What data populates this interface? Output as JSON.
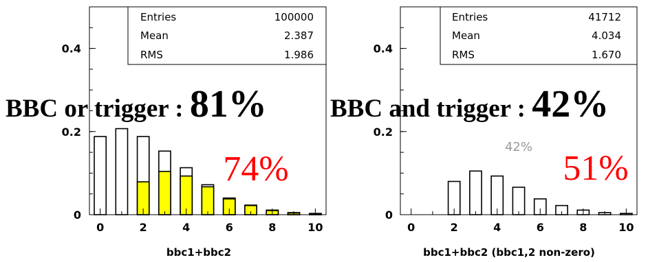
{
  "chart_data": [
    {
      "type": "bar",
      "x": [
        0,
        1,
        2,
        3,
        4,
        5,
        6,
        7,
        8,
        9,
        10
      ],
      "xlabel": "bbc1+bbc2",
      "xlim": [
        -0.5,
        10.5
      ],
      "ylim": [
        0,
        0.5
      ],
      "yticks": [
        0,
        0.2,
        0.4
      ],
      "ytick_labels": [
        "0",
        "0.2",
        "0.4"
      ],
      "xticks": [
        0,
        2,
        4,
        6,
        8,
        10
      ],
      "xtick_labels": [
        "0",
        "2",
        "4",
        "6",
        "8",
        "10"
      ],
      "series": [
        {
          "fill": "#ffffff",
          "values": [
            0.188,
            0.207,
            0.188,
            0.153,
            0.113,
            0.072,
            0.04,
            0.023,
            0.011,
            0.005,
            0.003
          ]
        },
        {
          "fill": "#ffff00",
          "values": [
            0.0,
            0.0,
            0.079,
            0.104,
            0.093,
            0.067,
            0.038,
            0.022,
            0.01,
            0.004,
            0.002
          ]
        }
      ],
      "stats": [
        {
          "label": "Entries",
          "value": "100000"
        },
        {
          "label": "Mean",
          "value": "2.387"
        },
        {
          "label": "RMS",
          "value": "1.986"
        }
      ],
      "annotations": [
        {
          "text": "74%",
          "color": "#ff0000"
        }
      ]
    },
    {
      "type": "bar",
      "x": [
        0,
        1,
        2,
        3,
        4,
        5,
        6,
        7,
        8,
        9,
        10
      ],
      "xlabel": "bbc1+bbc2 (bbc1,2 non-zero)",
      "xlim": [
        -0.5,
        10.5
      ],
      "ylim": [
        0,
        0.5
      ],
      "yticks": [
        0,
        0.2,
        0.4
      ],
      "ytick_labels": [
        "0",
        "0.2",
        "0.4"
      ],
      "xticks": [
        0,
        2,
        4,
        6,
        8,
        10
      ],
      "xtick_labels": [
        "0",
        "2",
        "4",
        "6",
        "8",
        "10"
      ],
      "series": [
        {
          "fill": "#ffffff",
          "values": [
            0.0,
            0.0,
            0.08,
            0.105,
            0.093,
            0.066,
            0.038,
            0.022,
            0.011,
            0.005,
            0.003
          ]
        }
      ],
      "stats": [
        {
          "label": "Entries",
          "value": "41712"
        },
        {
          "label": "Mean",
          "value": "4.034"
        },
        {
          "label": "RMS",
          "value": "1.670"
        }
      ],
      "annotations": [
        {
          "text": "42%",
          "color": "#999999"
        },
        {
          "text": "51%",
          "color": "#ff0000"
        }
      ]
    }
  ],
  "headlines": [
    {
      "prefix": "BBC or trigger : ",
      "value": "81%"
    },
    {
      "prefix": "BBC and trigger : ",
      "value": "42%"
    }
  ]
}
